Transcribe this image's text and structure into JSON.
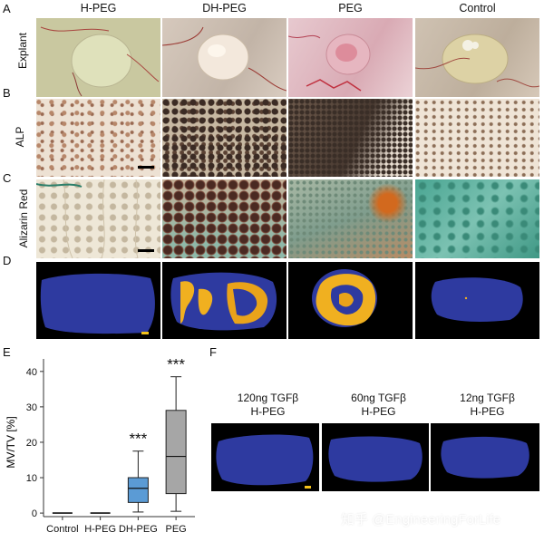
{
  "panels": {
    "A": "A",
    "B": "B",
    "C": "C",
    "D": "D",
    "E": "E",
    "F": "F"
  },
  "columns": [
    "H-PEG",
    "DH-PEG",
    "PEG",
    "Control"
  ],
  "rows": {
    "explant": "Explant",
    "alp": "ALP",
    "alizarin": "Alizarin Red"
  },
  "panel_f": {
    "captions": [
      {
        "line1": "120ng TGFβ",
        "line2": "H-PEG"
      },
      {
        "line1": "60ng TGFβ",
        "line2": "H-PEG"
      },
      {
        "line1": "12ng TGFβ",
        "line2": "H-PEG"
      }
    ]
  },
  "watermark": "知乎 @EngineeringForLife",
  "colors": {
    "dh_peg_box": "#5b9bd5",
    "peg_box": "#a6a6a6",
    "scan_background": "#000000",
    "scan_blue": "#2e3aa0",
    "mineral_gold": "#f0b020",
    "scalebar_yellow": "#f3c21a"
  },
  "chart_data": {
    "type": "box",
    "ylabel": "MV/TV [%]",
    "ylim": [
      -1,
      42
    ],
    "yticks": [
      0,
      10,
      20,
      30,
      40
    ],
    "categories": [
      "Control",
      "H-PEG",
      "DH-PEG",
      "PEG"
    ],
    "boxes": [
      {
        "name": "Control",
        "min": 0,
        "q1": 0,
        "median": 0,
        "q3": 0,
        "max": 0,
        "annotation": ""
      },
      {
        "name": "H-PEG",
        "min": 0,
        "q1": 0,
        "median": 0,
        "q3": 0,
        "max": 0,
        "annotation": ""
      },
      {
        "name": "DH-PEG",
        "min": 0.3,
        "q1": 3,
        "median": 7,
        "q3": 10,
        "max": 17.5,
        "annotation": "***"
      },
      {
        "name": "PEG",
        "min": 0.5,
        "q1": 5.5,
        "median": 16,
        "q3": 29,
        "max": 38.5,
        "annotation": "***"
      }
    ]
  }
}
